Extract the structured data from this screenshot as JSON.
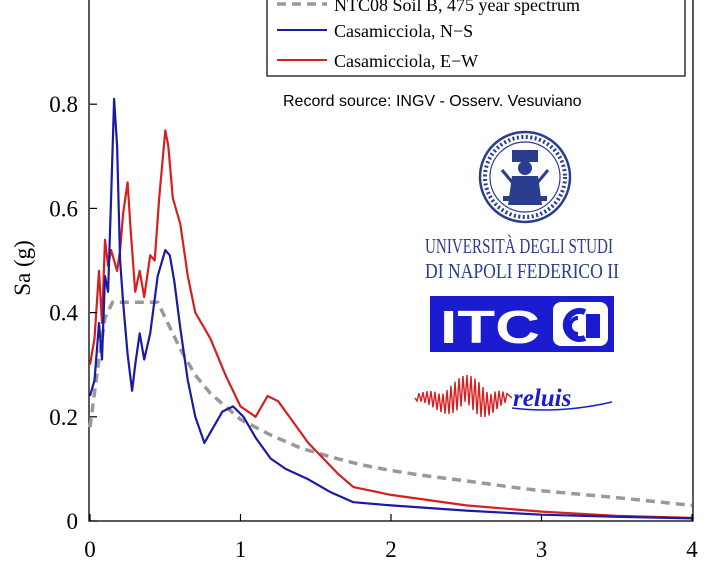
{
  "chart_data": {
    "type": "line",
    "xlabel": "",
    "ylabel": "Sa (g)",
    "xlim": [
      0,
      4
    ],
    "ylim": [
      0,
      1.0
    ],
    "x_ticks": [
      "0",
      "1",
      "2",
      "3",
      "4"
    ],
    "y_ticks": [
      "0",
      "0.2",
      "0.4",
      "0.6",
      "0.8"
    ],
    "grid": false,
    "legend_position": "top-right",
    "annotation": "Record source: INGV - Osserv. Vesuviano",
    "series": [
      {
        "name": "NTC08 Soil B, 475 year spectrum",
        "color": "#999999",
        "style": "dashed",
        "x": [
          0,
          0.05,
          0.1,
          0.15,
          0.2,
          0.3,
          0.4,
          0.45,
          0.5,
          0.6,
          0.7,
          0.8,
          0.9,
          1.0,
          1.2,
          1.4,
          1.6,
          1.8,
          2.0,
          2.2,
          2.5,
          2.8,
          3.0,
          3.5,
          4.0
        ],
        "values": [
          0.18,
          0.29,
          0.39,
          0.42,
          0.42,
          0.42,
          0.42,
          0.42,
          0.39,
          0.33,
          0.28,
          0.245,
          0.22,
          0.195,
          0.165,
          0.14,
          0.123,
          0.108,
          0.097,
          0.088,
          0.077,
          0.065,
          0.058,
          0.045,
          0.03
        ]
      },
      {
        "name": "Casamicciola, N−S",
        "color": "#1a1aa6",
        "style": "solid",
        "x": [
          0,
          0.03,
          0.06,
          0.08,
          0.1,
          0.12,
          0.14,
          0.16,
          0.18,
          0.2,
          0.22,
          0.25,
          0.28,
          0.3,
          0.33,
          0.36,
          0.4,
          0.45,
          0.5,
          0.53,
          0.56,
          0.6,
          0.65,
          0.7,
          0.76,
          0.82,
          0.88,
          0.95,
          1.02,
          1.1,
          1.2,
          1.3,
          1.45,
          1.6,
          1.75,
          2.0,
          2.5,
          3.0,
          3.5,
          4.0
        ],
        "values": [
          0.24,
          0.27,
          0.38,
          0.31,
          0.47,
          0.44,
          0.62,
          0.81,
          0.72,
          0.5,
          0.42,
          0.32,
          0.25,
          0.3,
          0.36,
          0.31,
          0.36,
          0.47,
          0.52,
          0.51,
          0.46,
          0.37,
          0.27,
          0.2,
          0.15,
          0.18,
          0.21,
          0.22,
          0.2,
          0.16,
          0.12,
          0.1,
          0.08,
          0.055,
          0.036,
          0.03,
          0.02,
          0.012,
          0.008,
          0.005
        ]
      },
      {
        "name": "Casamicciola, E−W",
        "color": "#d42020",
        "style": "solid",
        "x": [
          0,
          0.03,
          0.06,
          0.08,
          0.1,
          0.12,
          0.14,
          0.16,
          0.18,
          0.2,
          0.22,
          0.25,
          0.27,
          0.3,
          0.33,
          0.36,
          0.4,
          0.43,
          0.46,
          0.5,
          0.52,
          0.55,
          0.6,
          0.65,
          0.7,
          0.8,
          0.9,
          1.0,
          1.1,
          1.18,
          1.25,
          1.35,
          1.45,
          1.55,
          1.65,
          1.75,
          2.0,
          2.5,
          3.0,
          3.5,
          4.0
        ],
        "values": [
          0.3,
          0.35,
          0.48,
          0.38,
          0.54,
          0.49,
          0.52,
          0.5,
          0.48,
          0.52,
          0.59,
          0.65,
          0.56,
          0.44,
          0.48,
          0.43,
          0.51,
          0.5,
          0.62,
          0.75,
          0.72,
          0.62,
          0.57,
          0.47,
          0.4,
          0.35,
          0.28,
          0.22,
          0.2,
          0.24,
          0.23,
          0.19,
          0.15,
          0.12,
          0.09,
          0.065,
          0.05,
          0.03,
          0.018,
          0.01,
          0.006
        ]
      }
    ]
  },
  "logos": {
    "university_line1": "UNIVERSITÀ DEGLI STUDI",
    "university_line2": "DI NAPOLI FEDERICO II",
    "itc_label": "ITC",
    "reluis_label": "reluis"
  }
}
